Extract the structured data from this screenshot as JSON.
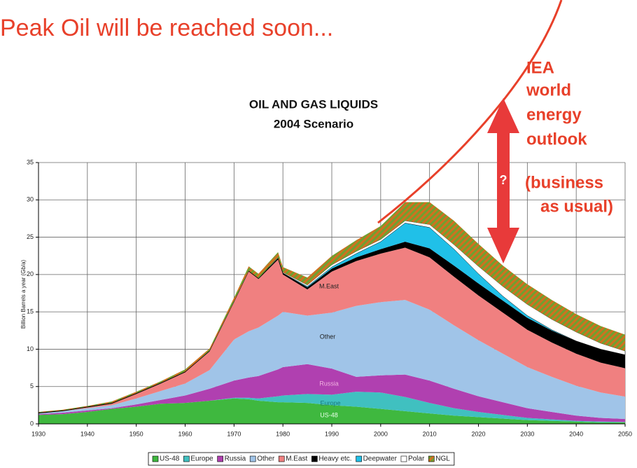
{
  "chart_data": {
    "type": "stacked_area",
    "headline": "Peak Oil will be reached soon...",
    "title": "OIL AND GAS LIQUIDS",
    "subtitle": "2004 Scenario",
    "y_label": "Billion Barrels a year (Gb/a)",
    "x": [
      1930,
      1935,
      1940,
      1945,
      1950,
      1955,
      1960,
      1965,
      1970,
      1973,
      1975,
      1979,
      1980,
      1985,
      1990,
      1995,
      2000,
      2005,
      2010,
      2015,
      2020,
      2025,
      2030,
      2035,
      2040,
      2045,
      2050
    ],
    "series": [
      {
        "name": "US-48",
        "color": "#3fb83f",
        "values": [
          1.2,
          1.3,
          1.6,
          2.0,
          2.3,
          2.7,
          2.8,
          3.1,
          3.4,
          3.3,
          3.1,
          2.9,
          2.9,
          2.8,
          2.5,
          2.3,
          2.0,
          1.7,
          1.4,
          1.1,
          0.9,
          0.7,
          0.5,
          0.4,
          0.3,
          0.2,
          0.2
        ]
      },
      {
        "name": "Europe",
        "color": "#40c0c0",
        "values": [
          0,
          0,
          0,
          0,
          0,
          0,
          0,
          0,
          0.1,
          0.2,
          0.3,
          0.8,
          0.9,
          1.2,
          1.4,
          2.0,
          2.2,
          1.9,
          1.4,
          1.0,
          0.7,
          0.5,
          0.3,
          0.2,
          0.1,
          0.1,
          0.05
        ]
      },
      {
        "name": "Russia",
        "color": "#b040b0",
        "values": [
          0.1,
          0.2,
          0.2,
          0.1,
          0.3,
          0.5,
          1.0,
          1.6,
          2.3,
          2.7,
          3.0,
          3.6,
          3.8,
          4.0,
          3.5,
          2.0,
          2.3,
          3.0,
          3.0,
          2.6,
          2.1,
          1.7,
          1.3,
          1.0,
          0.7,
          0.5,
          0.4
        ]
      },
      {
        "name": "Other",
        "color": "#a0c4e8",
        "values": [
          0.1,
          0.2,
          0.3,
          0.4,
          0.8,
          1.2,
          1.6,
          2.5,
          5.5,
          6.2,
          6.5,
          7.2,
          7.4,
          6.5,
          7.5,
          9.5,
          9.8,
          10.0,
          9.5,
          8.5,
          7.5,
          6.5,
          5.5,
          4.7,
          4.0,
          3.4,
          3.0
        ]
      },
      {
        "name": "M.East",
        "color": "#f08080",
        "values": [
          0,
          0,
          0.1,
          0.2,
          0.6,
          1.0,
          1.5,
          2.5,
          5.0,
          8.0,
          6.5,
          7.5,
          5.0,
          3.5,
          5.5,
          6.0,
          6.5,
          7.0,
          7.0,
          6.5,
          6.0,
          5.5,
          5.0,
          4.6,
          4.3,
          4.0,
          3.8
        ]
      },
      {
        "name": "Heavy etc.",
        "color": "#000000",
        "values": [
          0.1,
          0.1,
          0.1,
          0.1,
          0.1,
          0.1,
          0.1,
          0.1,
          0.1,
          0.1,
          0.1,
          0.2,
          0.2,
          0.3,
          0.4,
          0.5,
          0.6,
          0.8,
          1.2,
          1.5,
          1.6,
          1.6,
          1.6,
          1.6,
          1.7,
          1.8,
          1.8
        ]
      },
      {
        "name": "Deepwater",
        "color": "#20c0e8",
        "values": [
          0,
          0,
          0,
          0,
          0,
          0,
          0,
          0,
          0,
          0,
          0,
          0,
          0,
          0.1,
          0.2,
          0.5,
          1.0,
          2.5,
          2.8,
          2.2,
          1.3,
          0.6,
          0.3,
          0.1,
          0,
          0,
          0
        ]
      },
      {
        "name": "Polar",
        "color": "#ffffff",
        "values": [
          0,
          0,
          0,
          0,
          0,
          0,
          0,
          0,
          0,
          0,
          0,
          0.1,
          0.1,
          0.2,
          0.3,
          0.3,
          0.3,
          0.3,
          0.4,
          0.6,
          1.0,
          1.3,
          1.5,
          1.4,
          1.2,
          0.8,
          0.5
        ]
      },
      {
        "name": "NGL",
        "color": "#d07020",
        "hatch": "#70a030",
        "values": [
          0.1,
          0.1,
          0.1,
          0.2,
          0.2,
          0.2,
          0.3,
          0.3,
          0.5,
          0.6,
          0.6,
          0.7,
          0.7,
          1.0,
          1.2,
          1.5,
          1.8,
          2.5,
          3.0,
          3.2,
          3.0,
          2.8,
          2.7,
          2.6,
          2.4,
          2.3,
          2.2
        ]
      }
    ],
    "area_labels": [
      "M.East",
      "Other",
      "Russia",
      "Europe",
      "US-48"
    ],
    "iea_note": [
      "IEA",
      "world",
      "energy",
      "outlook",
      "(business",
      "as usual)"
    ],
    "question_mark": "?",
    "xlim": [
      1930,
      2050
    ],
    "ylim": [
      0,
      35
    ],
    "xticks": [
      1930,
      1940,
      1950,
      1960,
      1970,
      1980,
      1990,
      2000,
      2010,
      2020,
      2030,
      2040,
      2050
    ],
    "yticks": [
      0,
      5,
      10,
      15,
      20,
      25,
      30,
      35
    ],
    "grid": true,
    "legend": "bottom"
  }
}
